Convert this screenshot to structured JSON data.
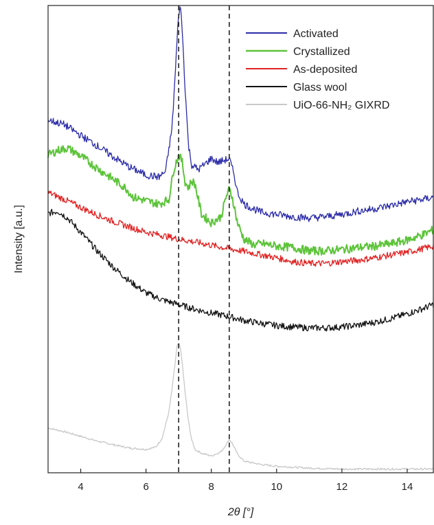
{
  "chart_data": {
    "type": "line",
    "xlabel": "2θ [°]",
    "ylabel": "Intensity [a.u.]",
    "xlim": [
      3,
      14.8
    ],
    "ylim": [
      0,
      1
    ],
    "x_ticks": [
      4,
      6,
      8,
      10,
      12,
      14
    ],
    "y_ticks_shown": false,
    "legend_position": "top-right",
    "reference_lines": [
      7.0,
      8.55
    ],
    "series": [
      {
        "name": "Activated",
        "color": "#2b2ba8",
        "x": [
          3.0,
          3.5,
          4.0,
          4.5,
          5.0,
          5.5,
          5.8,
          6.0,
          6.4,
          6.6,
          6.8,
          6.9,
          7.0,
          7.05,
          7.1,
          7.2,
          7.3,
          7.4,
          7.6,
          7.8,
          8.0,
          8.2,
          8.4,
          8.55,
          8.7,
          8.8,
          9.0,
          9.5,
          10.0,
          10.5,
          11.0,
          11.5,
          12.0,
          12.5,
          13.0,
          13.5,
          14.0,
          14.5,
          14.8
        ],
        "y": [
          0.755,
          0.745,
          0.722,
          0.7,
          0.676,
          0.654,
          0.644,
          0.637,
          0.633,
          0.645,
          0.74,
          0.86,
          0.985,
          0.998,
          0.96,
          0.82,
          0.7,
          0.659,
          0.649,
          0.66,
          0.673,
          0.664,
          0.669,
          0.672,
          0.638,
          0.6,
          0.575,
          0.558,
          0.553,
          0.548,
          0.545,
          0.548,
          0.553,
          0.56,
          0.565,
          0.572,
          0.58,
          0.585,
          0.59
        ]
      },
      {
        "name": "Crystallized",
        "color": "#5dc43a",
        "x": [
          3.0,
          3.3,
          3.6,
          4.0,
          4.5,
          5.0,
          5.4,
          5.6,
          6.0,
          6.4,
          6.7,
          6.85,
          7.0,
          7.1,
          7.2,
          7.3,
          7.4,
          7.5,
          7.7,
          8.0,
          8.3,
          8.45,
          8.55,
          8.65,
          8.8,
          9.0,
          9.3,
          9.6,
          10.0,
          10.5,
          11.0,
          11.5,
          12.0,
          12.5,
          13.0,
          13.5,
          14.0,
          14.5,
          14.8
        ],
        "y": [
          0.68,
          0.69,
          0.695,
          0.678,
          0.652,
          0.628,
          0.608,
          0.59,
          0.582,
          0.575,
          0.585,
          0.65,
          0.68,
          0.668,
          0.622,
          0.61,
          0.625,
          0.618,
          0.553,
          0.535,
          0.548,
          0.59,
          0.607,
          0.588,
          0.535,
          0.5,
          0.488,
          0.49,
          0.485,
          0.482,
          0.475,
          0.475,
          0.478,
          0.482,
          0.485,
          0.49,
          0.498,
          0.51,
          0.52
        ]
      },
      {
        "name": "As-deposited",
        "color": "#e02020",
        "x": [
          3.0,
          3.5,
          4.0,
          4.5,
          5.0,
          5.5,
          6.0,
          6.5,
          7.0,
          7.5,
          8.0,
          8.5,
          9.0,
          9.5,
          10.0,
          10.5,
          11.0,
          11.5,
          12.0,
          12.5,
          13.0,
          13.5,
          14.0,
          14.5,
          14.8
        ],
        "y": [
          0.6,
          0.585,
          0.568,
          0.552,
          0.538,
          0.526,
          0.515,
          0.508,
          0.5,
          0.494,
          0.487,
          0.48,
          0.474,
          0.467,
          0.46,
          0.452,
          0.448,
          0.448,
          0.452,
          0.455,
          0.46,
          0.466,
          0.472,
          0.48,
          0.485
        ]
      },
      {
        "name": "Glass wool",
        "color": "#111111",
        "x": [
          3.0,
          3.3,
          3.6,
          4.0,
          4.5,
          5.0,
          5.5,
          6.0,
          6.5,
          7.0,
          7.5,
          8.0,
          8.5,
          9.0,
          9.5,
          10.0,
          10.5,
          11.0,
          11.5,
          12.0,
          12.5,
          13.0,
          13.5,
          14.0,
          14.5,
          14.8
        ],
        "y": [
          0.555,
          0.56,
          0.545,
          0.515,
          0.475,
          0.44,
          0.41,
          0.385,
          0.37,
          0.36,
          0.35,
          0.342,
          0.335,
          0.326,
          0.32,
          0.315,
          0.312,
          0.31,
          0.31,
          0.312,
          0.316,
          0.322,
          0.33,
          0.34,
          0.352,
          0.36
        ]
      },
      {
        "name": "UiO-66-NH₂ GIXRD",
        "color": "#c8c8c8",
        "x": [
          3.0,
          3.5,
          4.0,
          4.5,
          5.0,
          5.5,
          6.0,
          6.3,
          6.5,
          6.7,
          6.8,
          6.9,
          6.95,
          7.0,
          7.05,
          7.1,
          7.2,
          7.3,
          7.4,
          7.5,
          7.7,
          8.0,
          8.3,
          8.45,
          8.55,
          8.65,
          8.8,
          9.0,
          9.5,
          10.0,
          11.0,
          12.0,
          13.0,
          14.0,
          14.8
        ],
        "y": [
          0.096,
          0.088,
          0.078,
          0.068,
          0.06,
          0.053,
          0.05,
          0.055,
          0.075,
          0.13,
          0.18,
          0.24,
          0.27,
          0.278,
          0.268,
          0.24,
          0.17,
          0.11,
          0.07,
          0.05,
          0.042,
          0.036,
          0.045,
          0.06,
          0.072,
          0.062,
          0.04,
          0.025,
          0.018,
          0.014,
          0.01,
          0.008,
          0.008,
          0.008,
          0.008
        ]
      }
    ]
  }
}
